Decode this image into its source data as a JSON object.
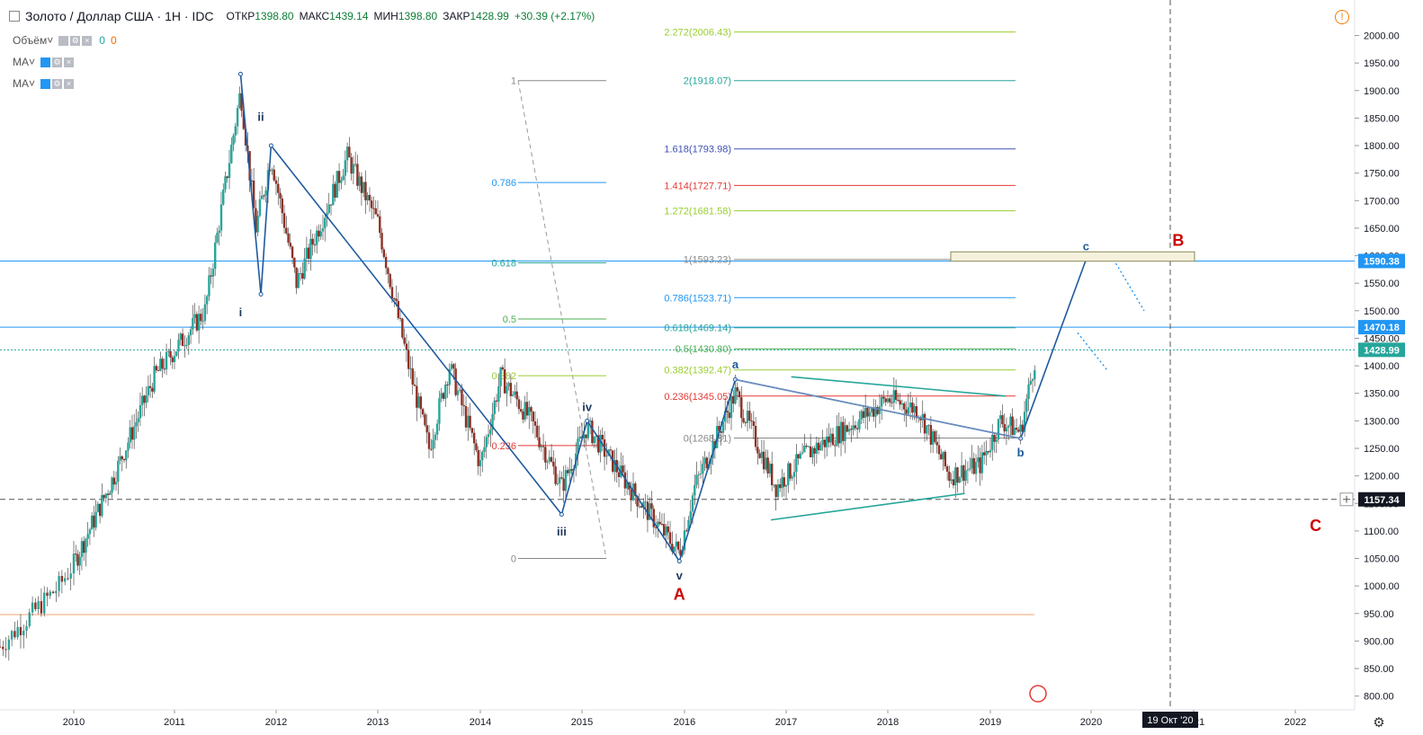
{
  "header": {
    "symbol": "Золото / Доллар США · 1Н · IDC",
    "open_label": "ОТКР",
    "open": "1398.80",
    "high_label": "МАКС",
    "high": "1439.14",
    "low_label": "МИН",
    "low": "1398.80",
    "close_label": "ЗАКР",
    "close": "1428.99",
    "change": "+30.39 (+2.17%)"
  },
  "indicators": [
    {
      "label": "Объём",
      "v1": "0",
      "v2": "0"
    },
    {
      "label": "MA"
    },
    {
      "label": "MA"
    }
  ],
  "icons": {
    "info": "exclamation-circle-icon",
    "settings": "gear-icon",
    "logo": "flag-logo-icon"
  },
  "chart_data": {
    "type": "candlestick",
    "x_ticks": [
      "2010",
      "2011",
      "2012",
      "2013",
      "2014",
      "2015",
      "2016",
      "2017",
      "2018",
      "2019",
      "2020",
      "2021",
      "2022"
    ],
    "y_ticks": [
      800,
      850,
      900,
      950,
      1000,
      1050,
      1100,
      1150,
      1200,
      1250,
      1300,
      1350,
      1400,
      1450,
      1500,
      1550,
      1600,
      1650,
      1700,
      1750,
      1800,
      1850,
      1900,
      1950,
      2000
    ],
    "ylim": [
      775,
      2040
    ],
    "price_labels": [
      {
        "text": "1590.38",
        "value": 1590.38,
        "color": "#2196f3"
      },
      {
        "text": "1470.18",
        "value": 1470.18,
        "color": "#2196f3"
      },
      {
        "text": "1428.99",
        "value": 1428.99,
        "color": "#26a69a"
      },
      {
        "text": "1157.34",
        "value": 1157.34,
        "color": "#131722"
      }
    ],
    "date_label": "19 Окт '20",
    "horizontal_lines": [
      {
        "value": 1590.38,
        "color": "#2196f3"
      },
      {
        "value": 1470.18,
        "color": "#2196f3"
      },
      {
        "value": 1428.99,
        "color": "#26a69a",
        "dash": true
      },
      {
        "value": 1157.34,
        "color": "#555555",
        "dash": true
      },
      {
        "value": 948,
        "color": "#f0a070"
      }
    ],
    "fib_retracement": {
      "levels": [
        {
          "label": "1",
          "value": 1918,
          "color": "#888888"
        },
        {
          "label": "0.786",
          "value": 1733,
          "color": "#2196f3"
        },
        {
          "label": "0.618",
          "value": 1587,
          "color": "#26a69a"
        },
        {
          "label": "0.5",
          "value": 1485,
          "color": "#4caf50"
        },
        {
          "label": "0.382",
          "value": 1382,
          "color": "#9acd32"
        },
        {
          "label": "0.236",
          "value": 1255,
          "color": "#e53935"
        },
        {
          "label": "0",
          "value": 1050,
          "color": "#888888"
        }
      ]
    },
    "fib_extension": {
      "levels": [
        {
          "label": "2.272(2006.43)",
          "value": 2006.43,
          "color": "#9acd32"
        },
        {
          "label": "2(1918.07)",
          "value": 1918.07,
          "color": "#26a69a"
        },
        {
          "label": "1.618(1793.98)",
          "value": 1793.98,
          "color": "#3f51b5"
        },
        {
          "label": "1.414(1727.71)",
          "value": 1727.71,
          "color": "#e53935"
        },
        {
          "label": "1.272(1681.58)",
          "value": 1681.58,
          "color": "#9acd32"
        },
        {
          "label": "1(1593.23)",
          "value": 1593.23,
          "color": "#888888"
        },
        {
          "label": "0.786(1523.71)",
          "value": 1523.71,
          "color": "#2196f3"
        },
        {
          "label": "0.618(1469.14)",
          "value": 1469.14,
          "color": "#26a69a"
        },
        {
          "label": "0.5(1430.80)",
          "value": 1430.8,
          "color": "#4caf50"
        },
        {
          "label": "0.382(1392.47)",
          "value": 1392.47,
          "color": "#9acd32"
        },
        {
          "label": "0.236(1345.05)",
          "value": 1345.05,
          "color": "#e53935"
        },
        {
          "label": "0(1268.81)",
          "value": 1268.81,
          "color": "#888888"
        }
      ]
    },
    "wave_labels": [
      {
        "text": "i"
      },
      {
        "text": "ii"
      },
      {
        "text": "iii"
      },
      {
        "text": "iv"
      },
      {
        "text": "v"
      },
      {
        "text": "a"
      },
      {
        "text": "b"
      },
      {
        "text": "c"
      },
      {
        "text": "A"
      },
      {
        "text": "B"
      },
      {
        "text": "C"
      }
    ]
  }
}
